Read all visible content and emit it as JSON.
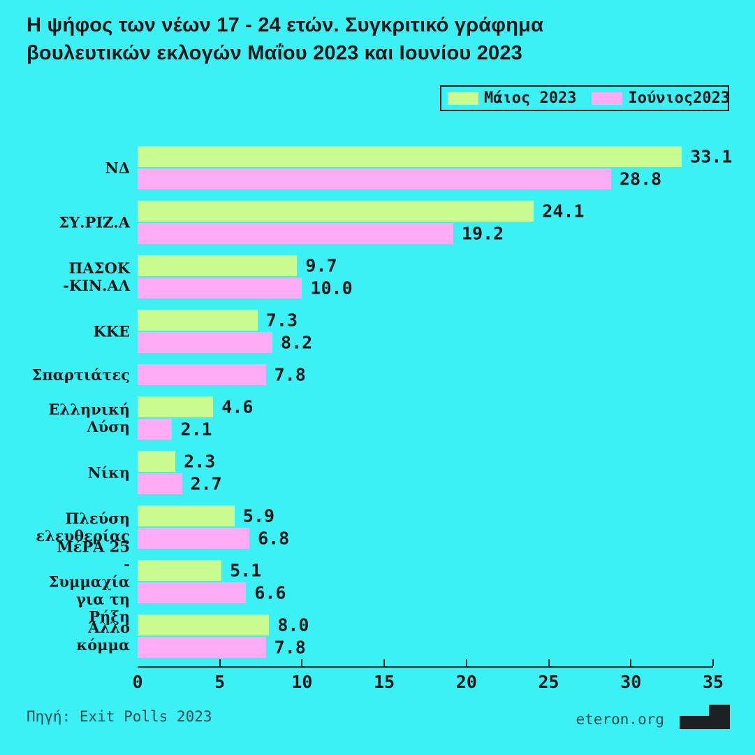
{
  "title": "Η ψήφος των νέων 17 - 24 ετών. Συγκριτικό γράφημα\nβουλευτικών εκλογών Μαΐου 2023 και Ιουνίου 2023",
  "footer": {
    "source": "Πηγή: Exit Polls 2023",
    "site": "eteron.org"
  },
  "colors": {
    "background": "#3bf1f4",
    "text": "#15181a",
    "axis": "#15181a",
    "may_green": "#c9fb90",
    "june_pink": "#fcabf4",
    "logo_black": "#1e2124"
  },
  "chart_data": {
    "type": "bar",
    "orientation": "horizontal",
    "title": "Η ψήφος των νέων 17 - 24 ετών. Συγκριτικό γράφημα βουλευτικών εκλογών Μαΐου 2023 και Ιουνίου 2023",
    "categories": [
      "ΝΔ",
      "ΣΥ.ΡΙΖ.Α",
      "ΠΑΣΟΚ\n-ΚΙΝ.ΑΛ",
      "ΚΚΕ",
      "Σπαρτιάτες",
      "Ελληνική\nΛύση",
      "Νίκη",
      "Πλεύση\nελευθερίας",
      "ΜέΡΑ 25\n- Συμμαχία\nγια τη Ρήξη",
      "Άλλο κόμμα"
    ],
    "series": [
      {
        "name": "Μάιος 2023",
        "color": "#c9fb90",
        "values": [
          33.1,
          24.1,
          9.7,
          7.3,
          null,
          4.6,
          2.3,
          5.9,
          5.1,
          8.0
        ]
      },
      {
        "name": "Ιούνιος2023",
        "color": "#fcabf4",
        "values": [
          28.8,
          19.2,
          10.0,
          8.2,
          7.8,
          2.1,
          2.7,
          6.8,
          6.6,
          7.8
        ]
      }
    ],
    "xlim": [
      0,
      35
    ],
    "x_ticks": [
      0,
      5,
      10,
      15,
      20,
      25,
      30,
      35
    ],
    "value_label_decimals": 1,
    "legend_position": "top-right",
    "grid": false
  }
}
